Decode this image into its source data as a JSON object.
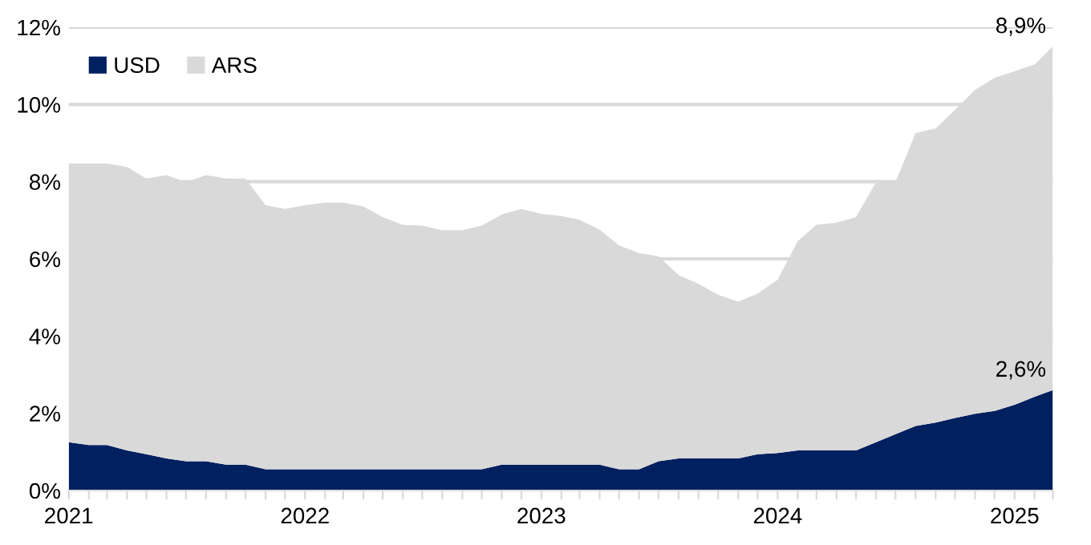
{
  "chart_data": {
    "type": "area",
    "stacked": true,
    "x": [
      "2021-01",
      "2021-02",
      "2021-03",
      "2021-04",
      "2021-05",
      "2021-06",
      "2021-07",
      "2021-08",
      "2021-09",
      "2021-10",
      "2021-11",
      "2021-12",
      "2022-01",
      "2022-02",
      "2022-03",
      "2022-04",
      "2022-05",
      "2022-06",
      "2022-07",
      "2022-08",
      "2022-09",
      "2022-10",
      "2022-11",
      "2022-12",
      "2023-01",
      "2023-02",
      "2023-03",
      "2023-04",
      "2023-05",
      "2023-06",
      "2023-07",
      "2023-08",
      "2023-09",
      "2023-10",
      "2023-11",
      "2023-12",
      "2024-01",
      "2024-02",
      "2024-03",
      "2024-04",
      "2024-05",
      "2024-06",
      "2024-07",
      "2024-08",
      "2024-09",
      "2024-10",
      "2024-11",
      "2024-12",
      "2025-01",
      "2025-02",
      "2025-03"
    ],
    "series": [
      {
        "name": "USD",
        "color": "#002060",
        "values": [
          1.25,
          1.18,
          1.18,
          1.04,
          0.94,
          0.83,
          0.76,
          0.76,
          0.67,
          0.67,
          0.55,
          0.55,
          0.55,
          0.55,
          0.55,
          0.55,
          0.55,
          0.55,
          0.55,
          0.55,
          0.55,
          0.55,
          0.67,
          0.67,
          0.67,
          0.67,
          0.67,
          0.67,
          0.55,
          0.55,
          0.76,
          0.83,
          0.83,
          0.83,
          0.83,
          0.94,
          0.97,
          1.04,
          1.04,
          1.04,
          1.04,
          1.25,
          1.46,
          1.67,
          1.76,
          1.88,
          1.99,
          2.06,
          2.22,
          2.43,
          2.6
        ],
        "value_labels": [
          null,
          null,
          null,
          null,
          null,
          null,
          null,
          null,
          null,
          null,
          null,
          null,
          null,
          null,
          null,
          null,
          null,
          null,
          null,
          null,
          null,
          null,
          null,
          null,
          null,
          null,
          null,
          null,
          null,
          null,
          null,
          null,
          null,
          null,
          null,
          null,
          null,
          null,
          null,
          null,
          null,
          null,
          null,
          null,
          null,
          null,
          null,
          null,
          null,
          null,
          "2,6%"
        ]
      },
      {
        "name": "ARS",
        "color": "#d9d9d9",
        "values": [
          7.22,
          7.29,
          7.29,
          7.34,
          7.14,
          7.34,
          7.23,
          7.41,
          7.41,
          7.41,
          6.84,
          6.74,
          6.84,
          6.91,
          6.91,
          6.81,
          6.53,
          6.33,
          6.31,
          6.19,
          6.19,
          6.31,
          6.48,
          6.62,
          6.5,
          6.44,
          6.34,
          6.09,
          5.8,
          5.6,
          5.31,
          4.75,
          4.52,
          4.24,
          4.06,
          4.16,
          4.49,
          5.42,
          5.84,
          5.9,
          6.04,
          6.74,
          6.53,
          7.59,
          7.62,
          7.98,
          8.39,
          8.63,
          8.64,
          8.61,
          8.9
        ],
        "value_labels": [
          null,
          null,
          null,
          null,
          null,
          null,
          null,
          null,
          null,
          null,
          null,
          null,
          null,
          null,
          null,
          null,
          null,
          null,
          null,
          null,
          null,
          null,
          null,
          null,
          null,
          null,
          null,
          null,
          null,
          null,
          null,
          null,
          null,
          null,
          null,
          null,
          null,
          null,
          null,
          null,
          null,
          null,
          null,
          null,
          null,
          null,
          null,
          null,
          null,
          null,
          "8,9%"
        ]
      }
    ],
    "xlim": [
      "2021-01",
      "2025-03"
    ],
    "xticks": [
      {
        "value": "2021-01",
        "label": "2021"
      },
      {
        "value": "2021-02",
        "label": null
      },
      {
        "value": "2021-03",
        "label": null
      },
      {
        "value": "2021-04",
        "label": null
      },
      {
        "value": "2021-05",
        "label": null
      },
      {
        "value": "2021-06",
        "label": null
      },
      {
        "value": "2021-07",
        "label": null
      },
      {
        "value": "2021-08",
        "label": null
      },
      {
        "value": "2021-09",
        "label": null
      },
      {
        "value": "2021-10",
        "label": null
      },
      {
        "value": "2021-11",
        "label": null
      },
      {
        "value": "2021-12",
        "label": null
      },
      {
        "value": "2022-01",
        "label": "2022"
      },
      {
        "value": "2022-02",
        "label": null
      },
      {
        "value": "2022-03",
        "label": null
      },
      {
        "value": "2022-04",
        "label": null
      },
      {
        "value": "2022-05",
        "label": null
      },
      {
        "value": "2022-06",
        "label": null
      },
      {
        "value": "2022-07",
        "label": null
      },
      {
        "value": "2022-08",
        "label": null
      },
      {
        "value": "2022-09",
        "label": null
      },
      {
        "value": "2022-10",
        "label": null
      },
      {
        "value": "2022-11",
        "label": null
      },
      {
        "value": "2022-12",
        "label": null
      },
      {
        "value": "2023-01",
        "label": "2023"
      },
      {
        "value": "2023-02",
        "label": null
      },
      {
        "value": "2023-03",
        "label": null
      },
      {
        "value": "2023-04",
        "label": null
      },
      {
        "value": "2023-05",
        "label": null
      },
      {
        "value": "2023-06",
        "label": null
      },
      {
        "value": "2023-07",
        "label": null
      },
      {
        "value": "2023-08",
        "label": null
      },
      {
        "value": "2023-09",
        "label": null
      },
      {
        "value": "2023-10",
        "label": null
      },
      {
        "value": "2023-11",
        "label": null
      },
      {
        "value": "2023-12",
        "label": null
      },
      {
        "value": "2024-01",
        "label": "2024"
      },
      {
        "value": "2024-02",
        "label": null
      },
      {
        "value": "2024-03",
        "label": null
      },
      {
        "value": "2024-04",
        "label": null
      },
      {
        "value": "2024-05",
        "label": null
      },
      {
        "value": "2024-06",
        "label": null
      },
      {
        "value": "2024-07",
        "label": null
      },
      {
        "value": "2024-08",
        "label": null
      },
      {
        "value": "2024-09",
        "label": null
      },
      {
        "value": "2024-10",
        "label": null
      },
      {
        "value": "2024-11",
        "label": null
      },
      {
        "value": "2024-12",
        "label": null
      },
      {
        "value": "2025-01",
        "label": "2025"
      },
      {
        "value": "2025-02",
        "label": null
      },
      {
        "value": "2025-03",
        "label": null
      }
    ],
    "ylim": [
      0,
      12
    ],
    "yticks": [
      {
        "value": 0,
        "label": "0%"
      },
      {
        "value": 2,
        "label": "2%"
      },
      {
        "value": 4,
        "label": "4%"
      },
      {
        "value": 6,
        "label": "6%"
      },
      {
        "value": 8,
        "label": "8%"
      },
      {
        "value": 10,
        "label": "10%"
      },
      {
        "value": 12,
        "label": "12%"
      }
    ],
    "grid": "y",
    "legend": "top left"
  }
}
